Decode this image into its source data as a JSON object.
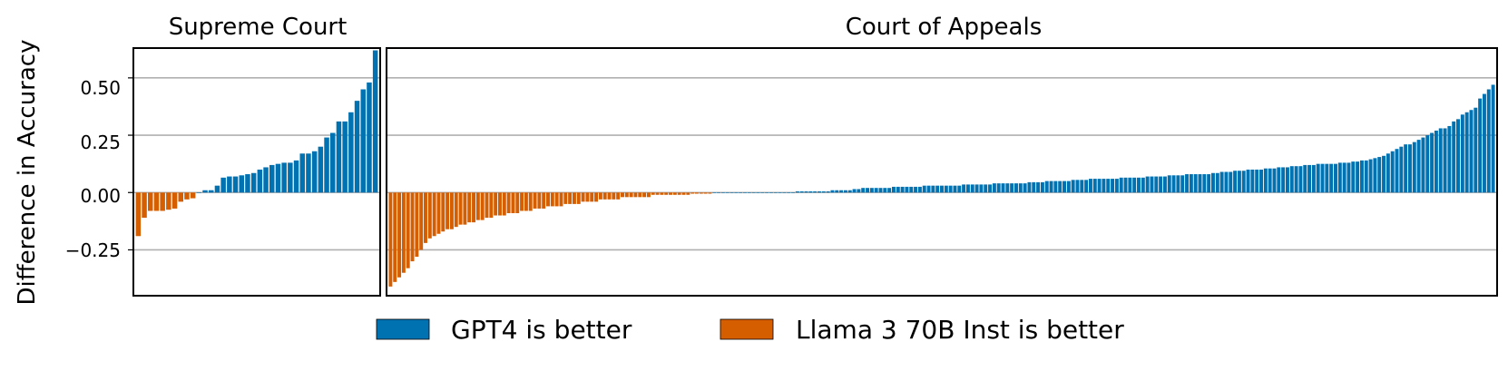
{
  "figure": {
    "ylabel": "Difference in Accuracy",
    "legend": {
      "placement": "bottom-center",
      "entries": [
        {
          "label": "GPT4 is better",
          "color": "#0072b2"
        },
        {
          "label": "Llama 3 70B Inst is better",
          "color": "#d55e00"
        }
      ]
    }
  },
  "chart_data": [
    {
      "type": "bar",
      "title": "Supreme Court",
      "xlabel": "",
      "ylabel": "Difference in Accuracy",
      "ylim": [
        -0.45,
        0.63
      ],
      "yticks": [
        -0.25,
        0.0,
        0.25,
        0.5
      ],
      "ytick_labels": [
        "−0.25",
        "0.00",
        "0.25",
        "0.50"
      ],
      "grid": "horizontal",
      "values": [
        -0.19,
        -0.11,
        -0.08,
        -0.08,
        -0.08,
        -0.075,
        -0.07,
        -0.04,
        -0.03,
        -0.025,
        0,
        0.01,
        0.01,
        0.03,
        0.065,
        0.07,
        0.07,
        0.075,
        0.08,
        0.085,
        0.1,
        0.11,
        0.12,
        0.125,
        0.13,
        0.13,
        0.14,
        0.17,
        0.17,
        0.18,
        0.2,
        0.24,
        0.26,
        0.31,
        0.31,
        0.35,
        0.4,
        0.45,
        0.48,
        0.62
      ]
    },
    {
      "type": "bar",
      "title": "Court of Appeals",
      "xlabel": "",
      "ylim": [
        -0.45,
        0.63
      ],
      "grid": "horizontal",
      "values": [
        -0.41,
        -0.39,
        -0.37,
        -0.35,
        -0.33,
        -0.3,
        -0.28,
        -0.25,
        -0.22,
        -0.2,
        -0.19,
        -0.18,
        -0.17,
        -0.16,
        -0.16,
        -0.15,
        -0.14,
        -0.14,
        -0.13,
        -0.13,
        -0.12,
        -0.12,
        -0.11,
        -0.11,
        -0.1,
        -0.1,
        -0.1,
        -0.09,
        -0.09,
        -0.09,
        -0.08,
        -0.08,
        -0.08,
        -0.07,
        -0.07,
        -0.07,
        -0.06,
        -0.06,
        -0.06,
        -0.06,
        -0.05,
        -0.05,
        -0.05,
        -0.05,
        -0.04,
        -0.04,
        -0.04,
        -0.04,
        -0.03,
        -0.03,
        -0.03,
        -0.03,
        -0.03,
        -0.02,
        -0.02,
        -0.02,
        -0.02,
        -0.02,
        -0.02,
        -0.02,
        -0.01,
        -0.01,
        -0.01,
        -0.01,
        -0.01,
        -0.01,
        -0.01,
        -0.01,
        -0.01,
        -0.005,
        -0.005,
        -0.005,
        -0.005,
        -0.005,
        0,
        0,
        0,
        0,
        0,
        0,
        0,
        0,
        0,
        0,
        0,
        0,
        0,
        0,
        0,
        0,
        0,
        0,
        0,
        0.005,
        0.005,
        0.005,
        0.005,
        0.005,
        0.005,
        0.005,
        0.005,
        0.01,
        0.01,
        0.01,
        0.01,
        0.01,
        0.015,
        0.015,
        0.02,
        0.02,
        0.02,
        0.02,
        0.02,
        0.02,
        0.02,
        0.025,
        0.025,
        0.025,
        0.025,
        0.025,
        0.025,
        0.025,
        0.03,
        0.03,
        0.03,
        0.03,
        0.03,
        0.03,
        0.03,
        0.03,
        0.03,
        0.035,
        0.035,
        0.035,
        0.035,
        0.035,
        0.035,
        0.035,
        0.04,
        0.04,
        0.04,
        0.04,
        0.04,
        0.04,
        0.04,
        0.04,
        0.045,
        0.045,
        0.045,
        0.045,
        0.05,
        0.05,
        0.05,
        0.05,
        0.05,
        0.05,
        0.055,
        0.055,
        0.055,
        0.055,
        0.06,
        0.06,
        0.06,
        0.06,
        0.06,
        0.06,
        0.06,
        0.065,
        0.065,
        0.065,
        0.065,
        0.065,
        0.065,
        0.07,
        0.07,
        0.07,
        0.07,
        0.07,
        0.075,
        0.075,
        0.075,
        0.075,
        0.08,
        0.08,
        0.08,
        0.08,
        0.08,
        0.08,
        0.085,
        0.085,
        0.09,
        0.09,
        0.09,
        0.095,
        0.095,
        0.095,
        0.1,
        0.1,
        0.1,
        0.1,
        0.105,
        0.105,
        0.105,
        0.11,
        0.11,
        0.11,
        0.115,
        0.115,
        0.115,
        0.12,
        0.12,
        0.12,
        0.125,
        0.125,
        0.125,
        0.125,
        0.125,
        0.13,
        0.13,
        0.13,
        0.135,
        0.135,
        0.14,
        0.14,
        0.145,
        0.15,
        0.155,
        0.16,
        0.17,
        0.18,
        0.19,
        0.2,
        0.21,
        0.21,
        0.22,
        0.23,
        0.24,
        0.25,
        0.26,
        0.27,
        0.28,
        0.28,
        0.29,
        0.31,
        0.32,
        0.34,
        0.35,
        0.36,
        0.37,
        0.41,
        0.43,
        0.45,
        0.47
      ]
    }
  ]
}
